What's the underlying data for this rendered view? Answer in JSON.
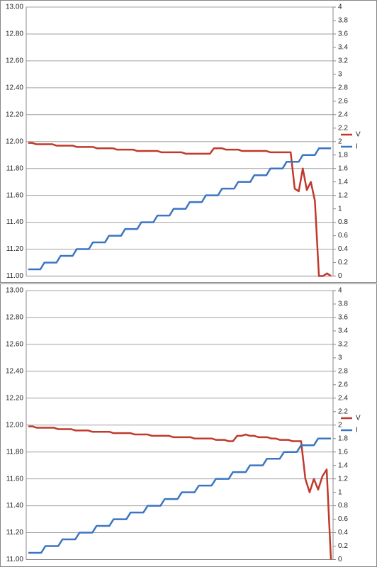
{
  "chart_data": [
    {
      "type": "line",
      "grid": true,
      "legend": "right",
      "ylim": [
        11,
        13
      ],
      "yticks": [
        {
          "value": 11,
          "label": "11.00"
        },
        {
          "value": 11.2,
          "label": "11.20"
        },
        {
          "value": 11.4,
          "label": "11.40"
        },
        {
          "value": 11.6,
          "label": "11.60"
        },
        {
          "value": 11.8,
          "label": "11.80"
        },
        {
          "value": 12,
          "label": "12.00"
        },
        {
          "value": 12.2,
          "label": "12.20"
        },
        {
          "value": 12.4,
          "label": "12.40"
        },
        {
          "value": 12.6,
          "label": "12.60"
        },
        {
          "value": 12.8,
          "label": "12.80"
        },
        {
          "value": 13,
          "label": "13.00"
        }
      ],
      "y2lim": [
        0,
        4
      ],
      "y2ticks": [
        0,
        0.2,
        0.4,
        0.6,
        0.8,
        1,
        1.2,
        1.4,
        1.6,
        1.8,
        2,
        2.2,
        2.4,
        2.6,
        2.8,
        3,
        3.2,
        3.4,
        3.6,
        3.8,
        4
      ],
      "series": [
        {
          "name": "V",
          "color": "#c0392b",
          "values": [
            11.99,
            11.99,
            11.98,
            11.98,
            11.98,
            11.98,
            11.98,
            11.97,
            11.97,
            11.97,
            11.97,
            11.97,
            11.96,
            11.96,
            11.96,
            11.96,
            11.96,
            11.95,
            11.95,
            11.95,
            11.95,
            11.95,
            11.94,
            11.94,
            11.94,
            11.94,
            11.94,
            11.93,
            11.93,
            11.93,
            11.93,
            11.93,
            11.93,
            11.92,
            11.92,
            11.92,
            11.92,
            11.92,
            11.92,
            11.91,
            11.91,
            11.91,
            11.91,
            11.91,
            11.91,
            11.91,
            11.95,
            11.95,
            11.95,
            11.94,
            11.94,
            11.94,
            11.94,
            11.93,
            11.93,
            11.93,
            11.93,
            11.93,
            11.93,
            11.93,
            11.92,
            11.92,
            11.92,
            11.92,
            11.92,
            11.92,
            11.65,
            11.63,
            11.8,
            11.64,
            11.7,
            11.56,
            11.0,
            11.0,
            11.02,
            11.0
          ]
        },
        {
          "name": "I",
          "color": "#3a75c4",
          "axis": "y2",
          "values": [
            0.1,
            0.1,
            0.1,
            0.1,
            0.2,
            0.2,
            0.2,
            0.2,
            0.3,
            0.3,
            0.3,
            0.3,
            0.4,
            0.4,
            0.4,
            0.4,
            0.5,
            0.5,
            0.5,
            0.5,
            0.6,
            0.6,
            0.6,
            0.6,
            0.7,
            0.7,
            0.7,
            0.7,
            0.8,
            0.8,
            0.8,
            0.8,
            0.9,
            0.9,
            0.9,
            0.9,
            1.0,
            1.0,
            1.0,
            1.0,
            1.1,
            1.1,
            1.1,
            1.1,
            1.2,
            1.2,
            1.2,
            1.2,
            1.3,
            1.3,
            1.3,
            1.3,
            1.4,
            1.4,
            1.4,
            1.4,
            1.5,
            1.5,
            1.5,
            1.5,
            1.6,
            1.6,
            1.6,
            1.6,
            1.7,
            1.7,
            1.7,
            1.7,
            1.8,
            1.8,
            1.8,
            1.8,
            1.9,
            1.9,
            1.9,
            1.9
          ]
        }
      ]
    },
    {
      "type": "line",
      "grid": true,
      "legend": "right",
      "ylim": [
        11,
        13
      ],
      "yticks": [
        {
          "value": 11,
          "label": "11.00"
        },
        {
          "value": 11.2,
          "label": "11.20"
        },
        {
          "value": 11.4,
          "label": "11.40"
        },
        {
          "value": 11.6,
          "label": "11.60"
        },
        {
          "value": 11.8,
          "label": "11.80"
        },
        {
          "value": 12,
          "label": "12.00"
        },
        {
          "value": 12.2,
          "label": "12.20"
        },
        {
          "value": 12.4,
          "label": "12.40"
        },
        {
          "value": 12.6,
          "label": "12.60"
        },
        {
          "value": 12.8,
          "label": "12.80"
        },
        {
          "value": 13,
          "label": "13.00"
        }
      ],
      "y2lim": [
        0,
        4
      ],
      "y2ticks": [
        0,
        0.2,
        0.4,
        0.6,
        0.8,
        1,
        1.2,
        1.4,
        1.6,
        1.8,
        2,
        2.2,
        2.4,
        2.6,
        2.8,
        3,
        3.2,
        3.4,
        3.6,
        3.8,
        4
      ],
      "series": [
        {
          "name": "V",
          "color": "#c0392b",
          "values": [
            11.99,
            11.99,
            11.98,
            11.98,
            11.98,
            11.98,
            11.98,
            11.97,
            11.97,
            11.97,
            11.97,
            11.96,
            11.96,
            11.96,
            11.96,
            11.95,
            11.95,
            11.95,
            11.95,
            11.95,
            11.94,
            11.94,
            11.94,
            11.94,
            11.94,
            11.93,
            11.93,
            11.93,
            11.93,
            11.92,
            11.92,
            11.92,
            11.92,
            11.92,
            11.91,
            11.91,
            11.91,
            11.91,
            11.91,
            11.9,
            11.9,
            11.9,
            11.9,
            11.9,
            11.89,
            11.89,
            11.89,
            11.88,
            11.88,
            11.92,
            11.92,
            11.93,
            11.92,
            11.92,
            11.91,
            11.91,
            11.91,
            11.9,
            11.9,
            11.89,
            11.89,
            11.89,
            11.88,
            11.88,
            11.88,
            11.6,
            11.5,
            11.6,
            11.52,
            11.62,
            11.67,
            11.0
          ]
        },
        {
          "name": "I",
          "color": "#3a75c4",
          "axis": "y2",
          "values": [
            0.1,
            0.1,
            0.1,
            0.1,
            0.2,
            0.2,
            0.2,
            0.2,
            0.3,
            0.3,
            0.3,
            0.3,
            0.4,
            0.4,
            0.4,
            0.4,
            0.5,
            0.5,
            0.5,
            0.5,
            0.6,
            0.6,
            0.6,
            0.6,
            0.7,
            0.7,
            0.7,
            0.7,
            0.8,
            0.8,
            0.8,
            0.8,
            0.9,
            0.9,
            0.9,
            0.9,
            1.0,
            1.0,
            1.0,
            1.0,
            1.1,
            1.1,
            1.1,
            1.1,
            1.2,
            1.2,
            1.2,
            1.2,
            1.3,
            1.3,
            1.3,
            1.3,
            1.4,
            1.4,
            1.4,
            1.4,
            1.5,
            1.5,
            1.5,
            1.5,
            1.6,
            1.6,
            1.6,
            1.6,
            1.7,
            1.7,
            1.7,
            1.7,
            1.8,
            1.8,
            1.8,
            1.8
          ]
        }
      ]
    }
  ]
}
